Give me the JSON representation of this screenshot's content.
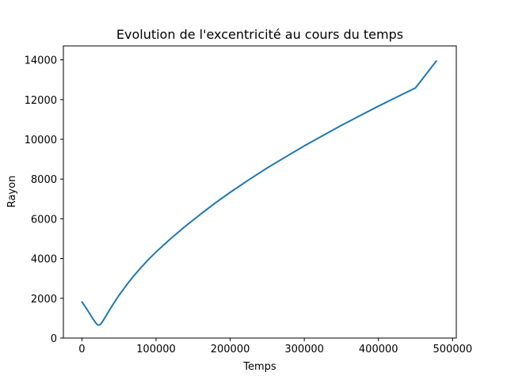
{
  "chart_data": {
    "type": "line",
    "title": "Evolution de l'excentricité au cours du temps",
    "xlabel": "Temps",
    "ylabel": "Rayon",
    "xlim": [
      -25000,
      505000
    ],
    "ylim": [
      0,
      14700
    ],
    "grid": false,
    "x_ticks": [
      0,
      100000,
      200000,
      300000,
      400000,
      500000
    ],
    "x_tick_labels": [
      "0",
      "100000",
      "200000",
      "300000",
      "400000",
      "500000"
    ],
    "y_ticks": [
      0,
      2000,
      4000,
      6000,
      8000,
      10000,
      12000,
      14000
    ],
    "y_tick_labels": [
      "0",
      "2000",
      "4000",
      "6000",
      "8000",
      "10000",
      "12000",
      "14000"
    ],
    "series": [
      {
        "color": "#1f77b4",
        "x": [
          0,
          5000,
          10000,
          15000,
          20000,
          22000,
          24000,
          26000,
          30000,
          40000,
          50000,
          60000,
          70000,
          80000,
          90000,
          100000,
          120000,
          140000,
          160000,
          180000,
          200000,
          225000,
          250000,
          275000,
          300000,
          325000,
          350000,
          375000,
          400000,
          425000,
          450000,
          478000
        ],
        "y": [
          1820,
          1550,
          1260,
          960,
          700,
          650,
          660,
          730,
          960,
          1580,
          2150,
          2660,
          3130,
          3560,
          3960,
          4330,
          5010,
          5640,
          6230,
          6800,
          7330,
          7960,
          8560,
          9120,
          9670,
          10190,
          10700,
          11190,
          11670,
          12130,
          12590,
          13940
        ]
      }
    ]
  }
}
